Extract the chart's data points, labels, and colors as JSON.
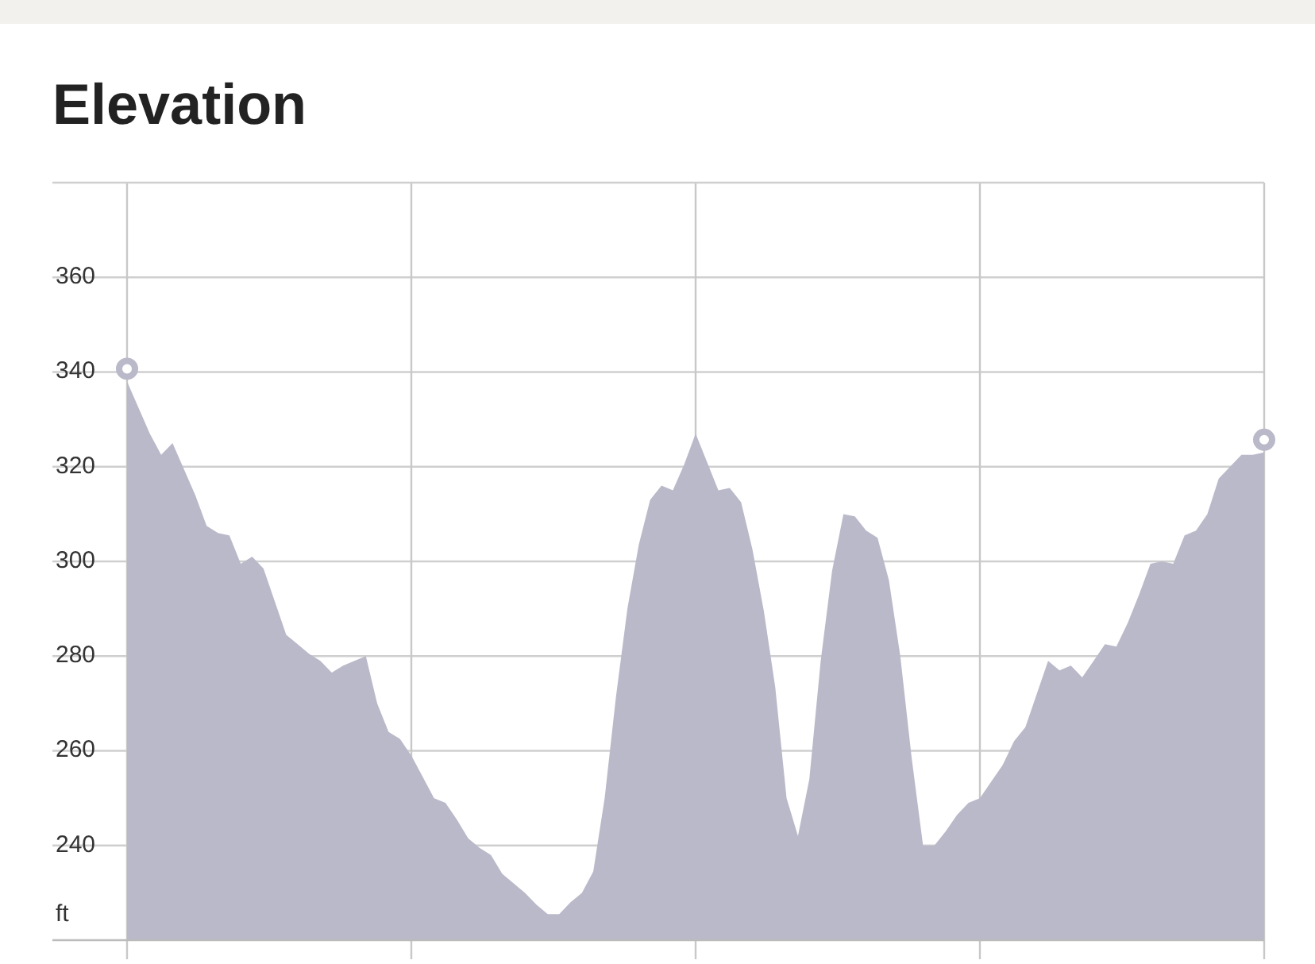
{
  "chart_data": {
    "type": "area",
    "title": "Elevation",
    "ylabel": "ft",
    "categories": [
      null,
      null,
      null,
      null,
      null,
      null,
      null,
      null,
      null,
      null,
      null,
      null,
      null,
      null,
      null,
      null,
      null,
      null,
      null,
      null,
      null,
      null,
      null,
      null,
      null,
      null,
      null,
      null,
      null,
      null,
      null,
      null,
      null,
      null,
      null,
      null,
      null,
      null,
      null,
      null,
      null,
      null,
      null,
      null,
      null,
      null,
      null,
      null,
      null,
      null,
      null,
      null,
      null,
      null,
      null,
      null,
      null,
      null,
      null,
      null,
      null,
      null,
      null,
      null,
      null,
      null,
      null,
      null,
      null,
      null,
      null,
      null,
      null,
      null,
      null,
      null,
      null,
      null,
      null,
      null,
      null,
      null,
      null,
      null,
      null,
      null,
      null,
      null,
      null,
      null,
      null,
      null,
      null,
      null,
      null,
      null,
      null,
      null,
      null,
      null,
      null
    ],
    "series": [
      {
        "color": "#bab9c9",
        "values": [
          338,
          332.5,
          327,
          322.5,
          325,
          319.5,
          314,
          307.5,
          306,
          305.5,
          299.5,
          301,
          298.5,
          291.5,
          284.5,
          282.5,
          280.5,
          279,
          276.5,
          278,
          279,
          280,
          270,
          264,
          262.5,
          259,
          254.5,
          250,
          249,
          245.5,
          241.5,
          239.5,
          238,
          234,
          232,
          230,
          227.5,
          225.5,
          225.5,
          228,
          230,
          234.5,
          250,
          271.5,
          290,
          303.5,
          313,
          316,
          315,
          320.5,
          327,
          321,
          315,
          315.5,
          312.5,
          302.5,
          289.5,
          273.5,
          250,
          242,
          254,
          279,
          298,
          310,
          309.5,
          306.5,
          305,
          296,
          280,
          258.5,
          240,
          240,
          243,
          246.5,
          249,
          250,
          253.5,
          257,
          262,
          265,
          272,
          279,
          277,
          278,
          275.5,
          279,
          282.5,
          282,
          287,
          293,
          299.5,
          300,
          299.5,
          305.5,
          306.5,
          310,
          317.5,
          320,
          322.5,
          322.5,
          323
        ]
      }
    ],
    "ylim": [
      220,
      380
    ],
    "yticks": [
      240,
      260,
      280,
      300,
      320,
      340,
      360
    ],
    "grid": true
  }
}
